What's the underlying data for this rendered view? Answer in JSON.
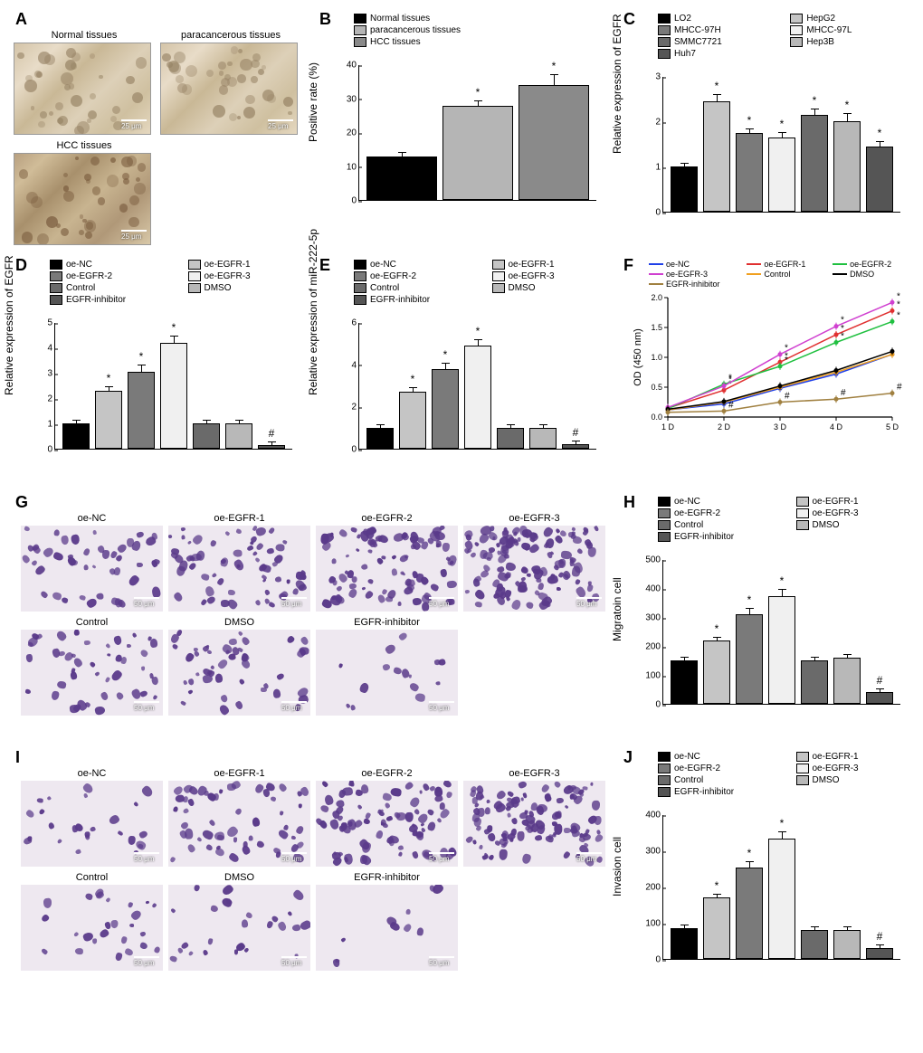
{
  "panelA": {
    "label": "A",
    "images": [
      {
        "title": "Normal tissues",
        "scale": "25 μm",
        "style": "ihc"
      },
      {
        "title": "paracancerous tissues",
        "scale": "25 μm",
        "style": "ihc"
      },
      {
        "title": "HCC tissues",
        "scale": "25 μm",
        "style": "ihc-dark"
      }
    ]
  },
  "panelB": {
    "label": "B",
    "ylabel": "Positive rate (%)",
    "ymax": 40,
    "ytick_step": 10,
    "legend_cols": 1,
    "bars": [
      {
        "label": "Normal tissues",
        "value": 13,
        "err": 1.2,
        "color": "#000000",
        "sig": ""
      },
      {
        "label": "paracancerous tissues",
        "value": 28,
        "err": 1.5,
        "color": "#b5b5b5",
        "sig": "*"
      },
      {
        "label": "HCC tissues",
        "value": 34,
        "err": 3.5,
        "color": "#8a8a8a",
        "sig": "*"
      }
    ]
  },
  "panelC": {
    "label": "C",
    "ylabel": "Relative expression of EGFR",
    "ymax": 3,
    "ytick_step": 1,
    "legend_cols": 2,
    "bars": [
      {
        "label": "LO2",
        "value": 1.0,
        "err": 0.1,
        "color": "#000000",
        "sig": ""
      },
      {
        "label": "HepG2",
        "value": 2.45,
        "err": 0.18,
        "color": "#c5c5c5",
        "sig": "*"
      },
      {
        "label": "MHCC-97H",
        "value": 1.75,
        "err": 0.1,
        "color": "#7a7a7a",
        "sig": "*"
      },
      {
        "label": "MHCC-97L",
        "value": 1.65,
        "err": 0.12,
        "color": "#f0f0f0",
        "sig": "*"
      },
      {
        "label": "SMMC7721",
        "value": 2.15,
        "err": 0.15,
        "color": "#6a6a6a",
        "sig": "*"
      },
      {
        "label": "Hep3B",
        "value": 2.02,
        "err": 0.18,
        "color": "#b8b8b8",
        "sig": "*"
      },
      {
        "label": "Huh7",
        "value": 1.45,
        "err": 0.12,
        "color": "#555555",
        "sig": "*"
      }
    ]
  },
  "panelD": {
    "label": "D",
    "ylabel": "Relative expression of EGFR",
    "ymax": 5,
    "ytick_step": 1,
    "legend_cols": 2,
    "bars": [
      {
        "label": "oe-NC",
        "value": 1.0,
        "err": 0.1,
        "color": "#000000",
        "sig": ""
      },
      {
        "label": "oe-EGFR-1",
        "value": 2.3,
        "err": 0.2,
        "color": "#c5c5c5",
        "sig": "*"
      },
      {
        "label": "oe-EGFR-2",
        "value": 3.05,
        "err": 0.3,
        "color": "#7a7a7a",
        "sig": "*"
      },
      {
        "label": "oe-EGFR-3",
        "value": 4.2,
        "err": 0.3,
        "color": "#f0f0f0",
        "sig": "*"
      },
      {
        "label": "Control",
        "value": 1.0,
        "err": 0.1,
        "color": "#6a6a6a",
        "sig": ""
      },
      {
        "label": "DMSO",
        "value": 1.0,
        "err": 0.1,
        "color": "#b8b8b8",
        "sig": ""
      },
      {
        "label": "EGFR-inhibitor",
        "value": 0.15,
        "err": 0.1,
        "color": "#555555",
        "sig": "#"
      }
    ]
  },
  "panelE": {
    "label": "E",
    "ylabel": "Relative expression of miR-222-5p",
    "ymax": 6,
    "ytick_step": 2,
    "legend_cols": 2,
    "bars": [
      {
        "label": "oe-NC",
        "value": 1.0,
        "err": 0.1,
        "color": "#000000",
        "sig": ""
      },
      {
        "label": "oe-EGFR-1",
        "value": 2.7,
        "err": 0.25,
        "color": "#c5c5c5",
        "sig": "*"
      },
      {
        "label": "oe-EGFR-2",
        "value": 3.8,
        "err": 0.3,
        "color": "#7a7a7a",
        "sig": "*"
      },
      {
        "label": "oe-EGFR-3",
        "value": 4.9,
        "err": 0.35,
        "color": "#f0f0f0",
        "sig": "*"
      },
      {
        "label": "Control",
        "value": 1.0,
        "err": 0.1,
        "color": "#6a6a6a",
        "sig": ""
      },
      {
        "label": "DMSO",
        "value": 1.0,
        "err": 0.1,
        "color": "#b8b8b8",
        "sig": ""
      },
      {
        "label": "EGFR-inhibitor",
        "value": 0.2,
        "err": 0.1,
        "color": "#555555",
        "sig": "#"
      }
    ]
  },
  "panelF": {
    "label": "F",
    "ylabel": "OD (450 nm)",
    "xlabel_vals": [
      "1 D",
      "2 D",
      "3 D",
      "4 D",
      "5 D"
    ],
    "ymax": 2.0,
    "ytick_step": 0.5,
    "series": [
      {
        "label": "oe-NC",
        "color": "#2040e8",
        "marker": "circle",
        "y": [
          0.12,
          0.22,
          0.48,
          0.72,
          1.05
        ]
      },
      {
        "label": "oe-EGFR-1",
        "color": "#e03030",
        "marker": "square",
        "y": [
          0.15,
          0.45,
          0.92,
          1.38,
          1.78
        ],
        "sig": "*"
      },
      {
        "label": "oe-EGFR-2",
        "color": "#20c040",
        "marker": "triangle",
        "y": [
          0.14,
          0.55,
          0.85,
          1.25,
          1.6
        ],
        "sig": "*"
      },
      {
        "label": "oe-EGFR-3",
        "color": "#d040d0",
        "marker": "triangle-down",
        "y": [
          0.16,
          0.52,
          1.05,
          1.52,
          1.92
        ],
        "sig": "*"
      },
      {
        "label": "Control",
        "color": "#f0a020",
        "marker": "diamond",
        "y": [
          0.12,
          0.25,
          0.5,
          0.75,
          1.05
        ]
      },
      {
        "label": "DMSO",
        "color": "#000000",
        "marker": "circle",
        "y": [
          0.13,
          0.26,
          0.52,
          0.78,
          1.1
        ]
      },
      {
        "label": "EGFR-inhibitor",
        "color": "#a08040",
        "marker": "square",
        "y": [
          0.08,
          0.1,
          0.25,
          0.3,
          0.4
        ],
        "sig": "#"
      }
    ]
  },
  "panelG": {
    "label": "G",
    "scale": "50 μm",
    "row1": [
      "oe-NC",
      "oe-EGFR-1",
      "oe-EGFR-2",
      "oe-EGFR-3"
    ],
    "row1_density": [
      45,
      65,
      90,
      130
    ],
    "row2": [
      "Control",
      "DMSO",
      "EGFR-inhibitor"
    ],
    "row2_density": [
      45,
      48,
      15
    ]
  },
  "panelH": {
    "label": "H",
    "ylabel": "Migratoin cell",
    "ymax": 500,
    "ytick_step": 100,
    "legend_cols": 2,
    "bars": [
      {
        "label": "oe-NC",
        "value": 150,
        "err": 10,
        "color": "#000000",
        "sig": ""
      },
      {
        "label": "oe-EGFR-1",
        "value": 220,
        "err": 15,
        "color": "#c5c5c5",
        "sig": "*"
      },
      {
        "label": "oe-EGFR-2",
        "value": 310,
        "err": 25,
        "color": "#7a7a7a",
        "sig": "*"
      },
      {
        "label": "oe-EGFR-3",
        "value": 375,
        "err": 25,
        "color": "#f0f0f0",
        "sig": "*"
      },
      {
        "label": "Control",
        "value": 150,
        "err": 10,
        "color": "#6a6a6a",
        "sig": ""
      },
      {
        "label": "DMSO",
        "value": 160,
        "err": 15,
        "color": "#b8b8b8",
        "sig": ""
      },
      {
        "label": "EGFR-inhibitor",
        "value": 40,
        "err": 15,
        "color": "#555555",
        "sig": "#"
      }
    ]
  },
  "panelI": {
    "label": "I",
    "scale": "50 μm",
    "row1": [
      "oe-NC",
      "oe-EGFR-1",
      "oe-EGFR-2",
      "oe-EGFR-3"
    ],
    "row1_density": [
      25,
      55,
      85,
      115
    ],
    "row2": [
      "Control",
      "DMSO",
      "EGFR-inhibitor"
    ],
    "row2_density": [
      25,
      26,
      10
    ]
  },
  "panelJ": {
    "label": "J",
    "ylabel": "Invasion cell",
    "ymax": 400,
    "ytick_step": 100,
    "legend_cols": 2,
    "bars": [
      {
        "label": "oe-NC",
        "value": 85,
        "err": 8,
        "color": "#000000",
        "sig": ""
      },
      {
        "label": "oe-EGFR-1",
        "value": 170,
        "err": 12,
        "color": "#c5c5c5",
        "sig": "*"
      },
      {
        "label": "oe-EGFR-2",
        "value": 255,
        "err": 18,
        "color": "#7a7a7a",
        "sig": "*"
      },
      {
        "label": "oe-EGFR-3",
        "value": 335,
        "err": 20,
        "color": "#f0f0f0",
        "sig": "*"
      },
      {
        "label": "Control",
        "value": 80,
        "err": 8,
        "color": "#6a6a6a",
        "sig": ""
      },
      {
        "label": "DMSO",
        "value": 80,
        "err": 8,
        "color": "#b8b8b8",
        "sig": ""
      },
      {
        "label": "EGFR-inhibitor",
        "value": 30,
        "err": 12,
        "color": "#555555",
        "sig": "#"
      }
    ]
  },
  "cell_color": "#5a3a8a"
}
